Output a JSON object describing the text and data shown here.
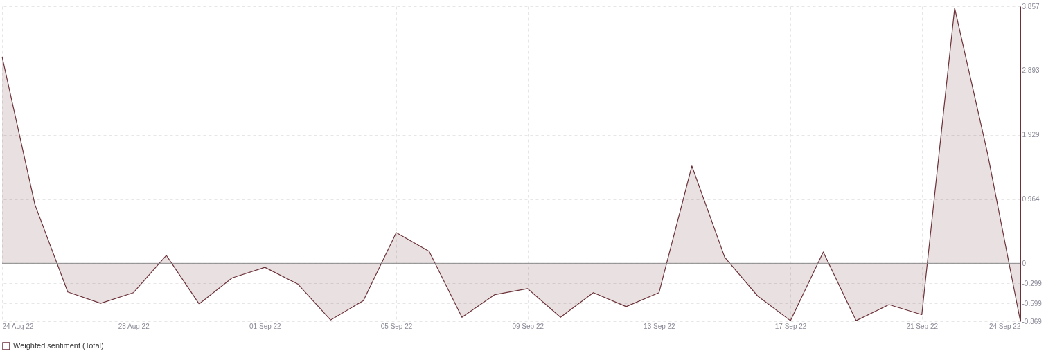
{
  "chart_data": {
    "type": "area",
    "x": [
      "--08-24",
      "--08-25",
      "--08-26",
      "--08-27",
      "--08-28",
      "--08-29",
      "--08-30",
      "--08-31",
      "--09-01",
      "--09-02",
      "--09-03",
      "--09-04",
      "--09-05",
      "--09-06",
      "--09-07",
      "--09-08",
      "--09-09",
      "--09-10",
      "--09-11",
      "--09-12",
      "--09-13",
      "--09-14",
      "--09-15",
      "--09-16",
      "--09-17",
      "--09-18",
      "--09-19",
      "--09-20",
      "--09-21",
      "--09-22",
      "--09-23",
      "--09-24"
    ],
    "series": [
      {
        "name": "Weighted sentiment (Total)",
        "color": "#6b3138",
        "values": [
          3.1,
          0.88,
          -0.43,
          -0.6,
          -0.44,
          0.12,
          -0.61,
          -0.22,
          -0.06,
          -0.31,
          -0.85,
          -0.56,
          0.46,
          0.18,
          -0.81,
          -0.47,
          -0.38,
          -0.81,
          -0.44,
          -0.65,
          -0.44,
          1.46,
          0.09,
          -0.49,
          -0.86,
          0.17,
          -0.86,
          -0.62,
          -0.77,
          3.83,
          1.65,
          -0.869
        ]
      }
    ],
    "xlim": [
      "--08-24",
      "--09-24"
    ],
    "xticks": [
      {
        "value": "--08-24",
        "label": "24 Aug 22"
      },
      {
        "value": "--08-28",
        "label": "28 Aug 22"
      },
      {
        "value": "--09-01",
        "label": "01 Sep 22"
      },
      {
        "value": "--09-05",
        "label": "05 Sep 22"
      },
      {
        "value": "--09-09",
        "label": "09 Sep 22"
      },
      {
        "value": "--09-13",
        "label": "13 Sep 22"
      },
      {
        "value": "--09-17",
        "label": "17 Sep 22"
      },
      {
        "value": "--09-21",
        "label": "21 Sep 22"
      },
      {
        "value": "--09-24",
        "label": "24 Sep 22"
      }
    ],
    "ylim": [
      -0.869,
      3.857
    ],
    "yticks": [
      3.857,
      2.893,
      1.929,
      0.964,
      0,
      -0.299,
      -0.599,
      -0.869
    ],
    "ref_lines": [
      {
        "axis": "y",
        "value": 0,
        "color": "#888888"
      }
    ],
    "grid": true,
    "legend": "bottom"
  }
}
